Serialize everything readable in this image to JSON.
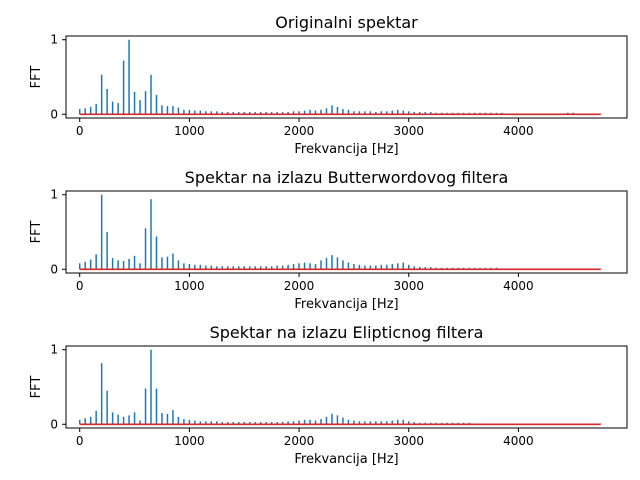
{
  "chart_data": [
    {
      "type": "stem",
      "title": "Originalni spektar",
      "xlabel": "Frekvancija [Hz]",
      "ylabel": "FFT",
      "xlim": [
        -125,
        4990
      ],
      "ylim": [
        -0.05,
        1.05
      ],
      "xticks": [
        0,
        1000,
        2000,
        3000,
        4000
      ],
      "yticks": [
        0,
        1
      ],
      "colors": {
        "stem": "#1f77b4",
        "baseline": "#d62728"
      },
      "x": [
        0,
        50,
        100,
        150,
        200,
        250,
        300,
        350,
        400,
        450,
        500,
        550,
        600,
        650,
        700,
        750,
        800,
        850,
        900,
        950,
        1000,
        1050,
        1100,
        1150,
        1200,
        1250,
        1300,
        1350,
        1400,
        1450,
        1500,
        1550,
        1600,
        1650,
        1700,
        1750,
        1800,
        1850,
        1900,
        1950,
        2000,
        2050,
        2100,
        2150,
        2200,
        2250,
        2300,
        2350,
        2400,
        2450,
        2500,
        2550,
        2600,
        2650,
        2700,
        2750,
        2800,
        2850,
        2900,
        2950,
        3000,
        3050,
        3100,
        3150,
        3200,
        3250,
        3300,
        3350,
        3400,
        3450,
        3500,
        3550,
        3600,
        3650,
        3700,
        3750,
        3800,
        3850,
        3900,
        3950,
        4000,
        4050,
        4100,
        4150,
        4200,
        4250,
        4300,
        4350,
        4400,
        4450,
        4500,
        4550,
        4600,
        4650,
        4700,
        4750
      ],
      "values": [
        0.07,
        0.08,
        0.1,
        0.14,
        0.53,
        0.34,
        0.17,
        0.15,
        0.72,
        1.0,
        0.3,
        0.19,
        0.31,
        0.53,
        0.26,
        0.12,
        0.11,
        0.11,
        0.09,
        0.06,
        0.06,
        0.05,
        0.05,
        0.04,
        0.04,
        0.04,
        0.03,
        0.03,
        0.03,
        0.03,
        0.03,
        0.03,
        0.03,
        0.03,
        0.03,
        0.03,
        0.03,
        0.03,
        0.03,
        0.04,
        0.04,
        0.05,
        0.06,
        0.05,
        0.06,
        0.08,
        0.12,
        0.1,
        0.07,
        0.06,
        0.04,
        0.04,
        0.04,
        0.04,
        0.03,
        0.04,
        0.04,
        0.05,
        0.06,
        0.05,
        0.04,
        0.03,
        0.03,
        0.03,
        0.03,
        0.02,
        0.02,
        0.02,
        0.02,
        0.02,
        0.02,
        0.02,
        0.02,
        0.02,
        0.02,
        0.02,
        0.02,
        0.02,
        0.01,
        0.01,
        0.01,
        0.01,
        0.01,
        0.01,
        0.01,
        0.01,
        0.01,
        0.01,
        0.01,
        0.02,
        0.02,
        0.01,
        0.01,
        0.01,
        0.01,
        0.01
      ]
    },
    {
      "type": "stem",
      "title": "Spektar na izlazu Butterwordovog filtera",
      "xlabel": "Frekvancija [Hz]",
      "ylabel": "FFT",
      "xlim": [
        -125,
        4990
      ],
      "ylim": [
        -0.05,
        1.05
      ],
      "xticks": [
        0,
        1000,
        2000,
        3000,
        4000
      ],
      "yticks": [
        0,
        1
      ],
      "colors": {
        "stem": "#1f77b4",
        "baseline": "#d62728"
      },
      "x": [
        0,
        50,
        100,
        150,
        200,
        250,
        300,
        350,
        400,
        450,
        500,
        550,
        600,
        650,
        700,
        750,
        800,
        850,
        900,
        950,
        1000,
        1050,
        1100,
        1150,
        1200,
        1250,
        1300,
        1350,
        1400,
        1450,
        1500,
        1550,
        1600,
        1650,
        1700,
        1750,
        1800,
        1850,
        1900,
        1950,
        2000,
        2050,
        2100,
        2150,
        2200,
        2250,
        2300,
        2350,
        2400,
        2450,
        2500,
        2550,
        2600,
        2650,
        2700,
        2750,
        2800,
        2850,
        2900,
        2950,
        3000,
        3050,
        3100,
        3150,
        3200,
        3250,
        3300,
        3350,
        3400,
        3450,
        3500,
        3550,
        3600,
        3650,
        3700,
        3750,
        3800,
        3850,
        3900,
        3950,
        4000,
        4050,
        4100,
        4150,
        4200,
        4250,
        4300,
        4350,
        4400,
        4450,
        4500,
        4550,
        4600,
        4650,
        4700,
        4750
      ],
      "values": [
        0.08,
        0.1,
        0.13,
        0.2,
        1.0,
        0.5,
        0.15,
        0.12,
        0.11,
        0.14,
        0.18,
        0.08,
        0.55,
        0.94,
        0.44,
        0.16,
        0.17,
        0.21,
        0.12,
        0.08,
        0.07,
        0.06,
        0.06,
        0.05,
        0.05,
        0.04,
        0.04,
        0.04,
        0.04,
        0.04,
        0.04,
        0.04,
        0.04,
        0.04,
        0.04,
        0.04,
        0.05,
        0.05,
        0.06,
        0.07,
        0.08,
        0.09,
        0.08,
        0.07,
        0.12,
        0.15,
        0.19,
        0.16,
        0.12,
        0.09,
        0.07,
        0.06,
        0.05,
        0.05,
        0.05,
        0.06,
        0.06,
        0.07,
        0.08,
        0.09,
        0.06,
        0.04,
        0.03,
        0.03,
        0.03,
        0.02,
        0.02,
        0.02,
        0.02,
        0.02,
        0.02,
        0.02,
        0.02,
        0.02,
        0.02,
        0.02,
        0.02,
        0.01,
        0.01,
        0.01,
        0.01,
        0.01,
        0.01,
        0.01,
        0.01,
        0.01,
        0.01,
        0.01,
        0.01,
        0.01,
        0.01,
        0.01,
        0.01,
        0.01,
        0.01,
        0.01
      ]
    },
    {
      "type": "stem",
      "title": "Spektar na izlazu Elipticnog filtera",
      "xlabel": "Frekvancija [Hz]",
      "ylabel": "FFT",
      "xlim": [
        -125,
        4990
      ],
      "ylim": [
        -0.05,
        1.05
      ],
      "xticks": [
        0,
        1000,
        2000,
        3000,
        4000
      ],
      "yticks": [
        0,
        1
      ],
      "colors": {
        "stem": "#1f77b4",
        "baseline": "#d62728"
      },
      "x": [
        0,
        50,
        100,
        150,
        200,
        250,
        300,
        350,
        400,
        450,
        500,
        550,
        600,
        650,
        700,
        750,
        800,
        850,
        900,
        950,
        1000,
        1050,
        1100,
        1150,
        1200,
        1250,
        1300,
        1350,
        1400,
        1450,
        1500,
        1550,
        1600,
        1650,
        1700,
        1750,
        1800,
        1850,
        1900,
        1950,
        2000,
        2050,
        2100,
        2150,
        2200,
        2250,
        2300,
        2350,
        2400,
        2450,
        2500,
        2550,
        2600,
        2650,
        2700,
        2750,
        2800,
        2850,
        2900,
        2950,
        3000,
        3050,
        3100,
        3150,
        3200,
        3250,
        3300,
        3350,
        3400,
        3450,
        3500,
        3550,
        3600,
        3650,
        3700,
        3750,
        3800,
        3850,
        3900,
        3950,
        4000,
        4050,
        4100,
        4150,
        4200,
        4250,
        4300,
        4350,
        4400,
        4450,
        4500,
        4550,
        4600,
        4650,
        4700,
        4750
      ],
      "values": [
        0.06,
        0.08,
        0.1,
        0.18,
        0.82,
        0.45,
        0.16,
        0.13,
        0.1,
        0.12,
        0.16,
        0.05,
        0.48,
        1.0,
        0.48,
        0.15,
        0.14,
        0.19,
        0.1,
        0.07,
        0.06,
        0.05,
        0.04,
        0.04,
        0.04,
        0.04,
        0.03,
        0.03,
        0.03,
        0.03,
        0.03,
        0.03,
        0.03,
        0.03,
        0.03,
        0.03,
        0.03,
        0.03,
        0.04,
        0.04,
        0.05,
        0.06,
        0.06,
        0.05,
        0.07,
        0.1,
        0.14,
        0.12,
        0.09,
        0.06,
        0.05,
        0.04,
        0.04,
        0.04,
        0.04,
        0.04,
        0.04,
        0.05,
        0.06,
        0.06,
        0.04,
        0.03,
        0.02,
        0.02,
        0.02,
        0.02,
        0.02,
        0.02,
        0.02,
        0.02,
        0.02,
        0.02,
        0.01,
        0.01,
        0.01,
        0.01,
        0.01,
        0.01,
        0.01,
        0.01,
        0.01,
        0.01,
        0.01,
        0.01,
        0.01,
        0.01,
        0.01,
        0.01,
        0.01,
        0.01,
        0.01,
        0.01,
        0.01,
        0.01,
        0.01,
        0.01
      ]
    }
  ]
}
